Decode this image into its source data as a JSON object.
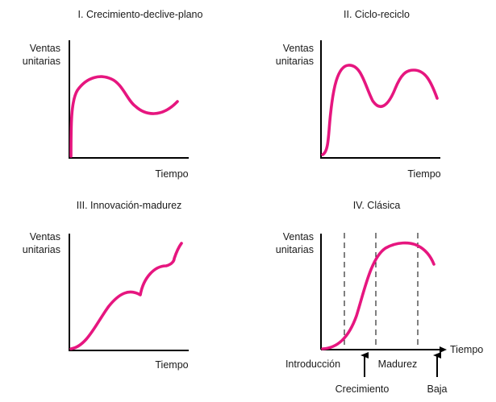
{
  "colors": {
    "curve": "#e6167f",
    "axis": "#000000",
    "text": "#1a1a1a"
  },
  "panels": [
    {
      "title": "I. Crecimiento-declive-plano",
      "ylabel_line1": "Ventas",
      "ylabel_line2": "unitarias",
      "xlabel": "Tiempo"
    },
    {
      "title": "II. Ciclo-reciclo",
      "ylabel_line1": "Ventas",
      "ylabel_line2": "unitarias",
      "xlabel": "Tiempo"
    },
    {
      "title": "III. Innovación-madurez",
      "ylabel_line1": "Ventas",
      "ylabel_line2": "unitarias",
      "xlabel": "Tiempo"
    },
    {
      "title": "IV. Clásica",
      "ylabel_line1": "Ventas",
      "ylabel_line2": "unitarias",
      "xlabel": "Tiempo",
      "stages": [
        "Introducción",
        "Crecimiento",
        "Madurez",
        "Baja"
      ]
    }
  ]
}
